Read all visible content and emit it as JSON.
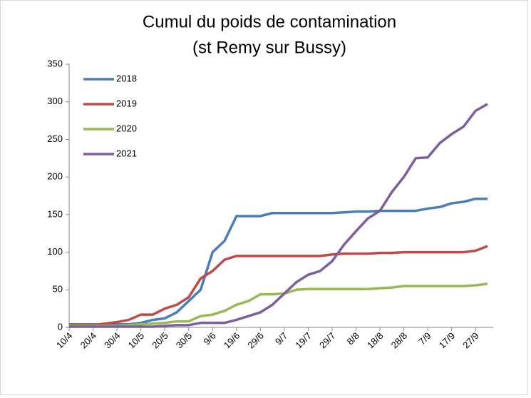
{
  "chart_data": {
    "type": "line",
    "title": "Cumul du poids de contamination",
    "subtitle": "(st Remy sur Bussy)",
    "categories": [
      "10/4",
      null,
      "20/4",
      null,
      "30/4",
      null,
      "10/5",
      null,
      "20/5",
      null,
      "30/5",
      null,
      "9/6",
      null,
      "19/6",
      null,
      "29/6",
      null,
      "9/7",
      null,
      "19/7",
      null,
      "29/7",
      null,
      "8/8",
      null,
      "18/8",
      null,
      "28/8",
      null,
      "7/9",
      null,
      "17/9",
      null,
      "27/9",
      null
    ],
    "series": [
      {
        "name": "2018",
        "color": "#4a7ebb",
        "values": [
          4,
          4,
          4,
          4,
          4,
          4,
          6,
          10,
          12,
          20,
          35,
          50,
          100,
          115,
          148,
          148,
          148,
          152,
          152,
          152,
          152,
          152,
          152,
          153,
          154,
          154,
          155,
          155,
          155,
          155,
          158,
          160,
          165,
          167,
          171,
          171
        ]
      },
      {
        "name": "2019",
        "color": "#be4b48",
        "values": [
          3,
          3,
          3,
          5,
          7,
          10,
          17,
          17,
          25,
          30,
          40,
          65,
          75,
          90,
          95,
          95,
          95,
          95,
          95,
          95,
          95,
          95,
          97,
          98,
          98,
          98,
          99,
          99,
          100,
          100,
          100,
          100,
          100,
          100,
          102,
          108
        ]
      },
      {
        "name": "2020",
        "color": "#98b954",
        "values": [
          2,
          2,
          2,
          2,
          2,
          3,
          4,
          5,
          6,
          8,
          8,
          15,
          17,
          22,
          30,
          35,
          44,
          44,
          45,
          50,
          51,
          51,
          51,
          51,
          51,
          51,
          52,
          53,
          55,
          55,
          55,
          55,
          55,
          55,
          56,
          58
        ]
      },
      {
        "name": "2021",
        "color": "#7d5fa0",
        "values": [
          1,
          1,
          1,
          1,
          1,
          1,
          1,
          1,
          2,
          3,
          3,
          6,
          6,
          6,
          10,
          15,
          20,
          30,
          45,
          60,
          70,
          75,
          88,
          110,
          128,
          145,
          155,
          180,
          200,
          225,
          226,
          245,
          257,
          267,
          288,
          297
        ]
      }
    ],
    "ylim": [
      0,
      350
    ],
    "yticks": [
      0,
      50,
      100,
      150,
      200,
      250,
      300,
      350
    ],
    "legend": "top-left"
  }
}
